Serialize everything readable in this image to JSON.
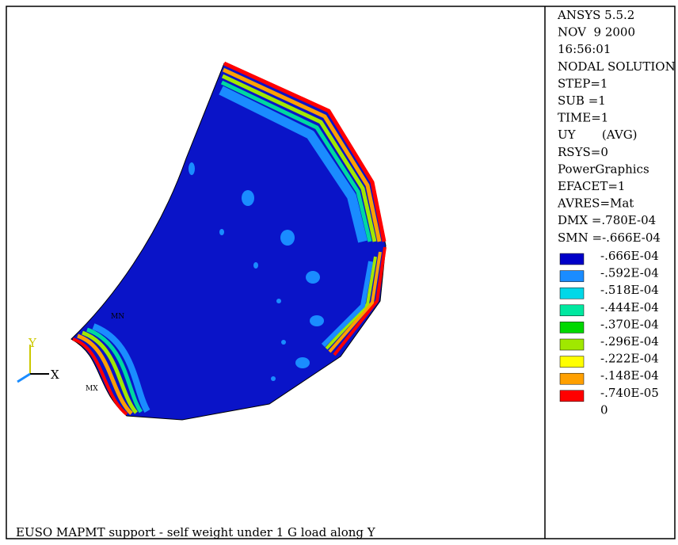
{
  "info": [
    "ANSYS 5.5.2",
    "NOV  9 2000",
    "16:56:01",
    "NODAL SOLUTION",
    "STEP=1",
    "SUB =1",
    "TIME=1",
    "UY       (AVG)",
    "RSYS=0",
    "PowerGraphics",
    "EFACET=1",
    "AVRES=Mat",
    "DMX =.780E-04",
    "SMN =-.666E-04"
  ],
  "legend": {
    "colors": [
      "#0000c8",
      "#1a8cff",
      "#00d8e8",
      "#00e8a0",
      "#00d800",
      "#a0e800",
      "#ffff00",
      "#ffa000",
      "#ff0000"
    ],
    "labels": [
      "-.666E-04",
      "-.592E-04",
      "-.518E-04",
      "-.444E-04",
      "-.370E-04",
      "-.296E-04",
      "-.222E-04",
      "-.148E-04",
      "-.740E-05",
      "0"
    ]
  },
  "triad": {
    "x": "X",
    "y": "Y"
  },
  "markers": {
    "min": "MN",
    "max": "MX"
  },
  "caption": "EUSO MAPMT support - self weight under 1 G load along Y"
}
